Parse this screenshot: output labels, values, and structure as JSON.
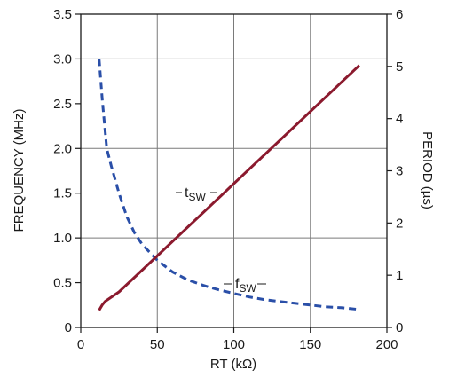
{
  "chart_data": {
    "type": "line",
    "xlabel": "RT (kΩ)",
    "ylabel_left": "FREQUENCY (MHz)",
    "ylabel_right": "PERIOD (µs)",
    "xlim": [
      0,
      200
    ],
    "ylim_left": [
      0,
      3.5
    ],
    "ylim_right": [
      0,
      6
    ],
    "x_ticks": [
      "0",
      "50",
      "100",
      "150",
      "200"
    ],
    "y_ticks_left": [
      "0",
      "0.5",
      "1.0",
      "1.5",
      "2.0",
      "2.5",
      "3.0",
      "3.5"
    ],
    "y_ticks_right": [
      "0",
      "1",
      "2",
      "3",
      "4",
      "5",
      "6"
    ],
    "grid": true,
    "series": [
      {
        "name": "fSW",
        "label_main": "f",
        "label_sub": "SW",
        "axis": "left",
        "style": "dashed",
        "color": "#2a4fa8",
        "x": [
          12,
          14,
          17,
          20,
          25,
          30,
          35,
          40,
          50,
          60,
          70,
          80,
          90,
          100,
          110,
          120,
          130,
          140,
          150,
          160,
          170,
          182
        ],
        "y": [
          3.0,
          2.55,
          2.0,
          1.8,
          1.5,
          1.24,
          1.06,
          0.93,
          0.75,
          0.62,
          0.53,
          0.47,
          0.42,
          0.38,
          0.34,
          0.31,
          0.29,
          0.27,
          0.25,
          0.23,
          0.22,
          0.2
        ]
      },
      {
        "name": "tSW",
        "label_main": "t",
        "label_sub": "SW",
        "axis": "right",
        "style": "solid",
        "color": "#8b1a2e",
        "x": [
          12,
          14,
          16,
          20,
          25,
          182
        ],
        "y": [
          0.33,
          0.43,
          0.5,
          0.58,
          0.68,
          5.02
        ]
      }
    ]
  }
}
